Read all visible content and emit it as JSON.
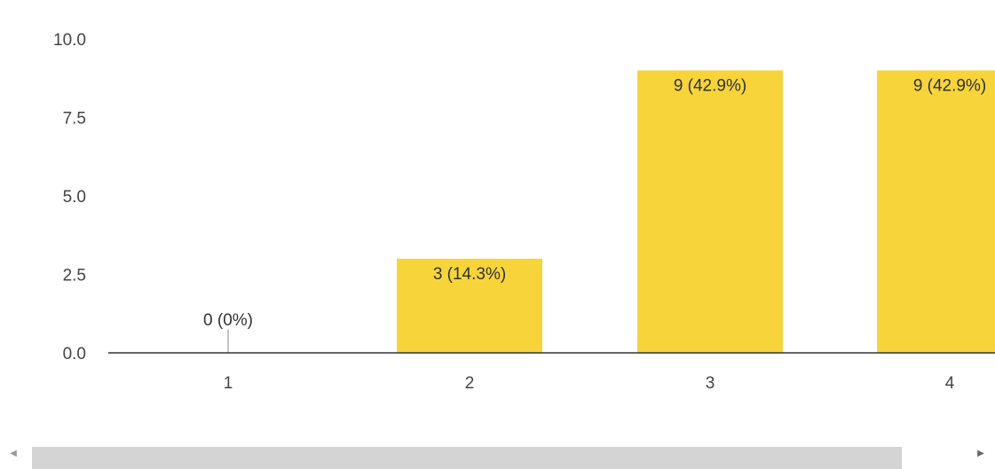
{
  "chart_data": {
    "type": "bar",
    "categories": [
      "1",
      "2",
      "3",
      "4"
    ],
    "values": [
      0,
      3,
      9,
      9
    ],
    "data_labels": [
      "0 (0%)",
      "3 (14.3%)",
      "9 (42.9%)",
      "9 (42.9%)"
    ],
    "y_ticks": [
      "0.0",
      "2.5",
      "5.0",
      "7.5",
      "10.0"
    ],
    "ylim": [
      0,
      10
    ],
    "title": "",
    "xlabel": "",
    "ylabel": "",
    "grid": false,
    "bar_color": "#f7d43a",
    "axis_color": "#333333"
  },
  "scrollbar": {
    "left_icon": "left-triangle-icon",
    "right_icon": "right-triangle-icon"
  }
}
